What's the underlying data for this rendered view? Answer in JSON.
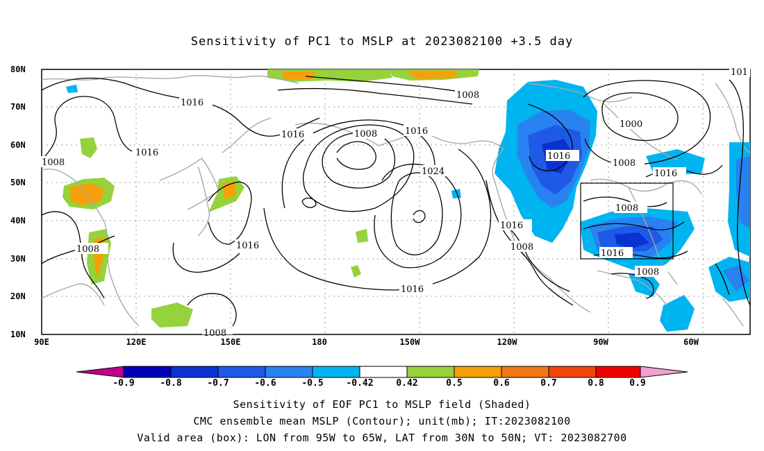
{
  "title": "Sensitivity of PC1 to MSLP at 2023082100 +3.5 day",
  "lat_labels": [
    "80N",
    "70N",
    "60N",
    "50N",
    "40N",
    "30N",
    "20N",
    "10N"
  ],
  "lon_labels": [
    "90E",
    "120E",
    "150E",
    "180",
    "150W",
    "120W",
    "90W",
    "60W"
  ],
  "contour_labels": [
    "1016",
    "1008",
    "1016",
    "1016",
    "1008",
    "1016",
    "1024",
    "1008",
    "1016",
    "1016",
    "1008",
    "1016",
    "1008",
    "1016",
    "1000",
    "1008",
    "1016",
    "1016",
    "1008",
    "1008",
    "101",
    "1008"
  ],
  "colorbar": {
    "labels": [
      "-0.9",
      "-0.8",
      "-0.7",
      "-0.6",
      "-0.5",
      "-0.42",
      "0.42",
      "0.5",
      "0.6",
      "0.7",
      "0.8",
      "0.9"
    ],
    "colors": [
      "#c0008c",
      "#0000b4",
      "#0a32d2",
      "#1e5ae6",
      "#2882f0",
      "#00b4f0",
      "#ffffff",
      "#96d23c",
      "#f5a00a",
      "#f07814",
      "#f0460a",
      "#f00000",
      "#f0a0d2"
    ]
  },
  "caption": {
    "line1": "Sensitivity of EOF PC1 to MSLP field (Shaded)",
    "line2": "CMC ensemble mean MSLP (Contour); unit(mb); IT:2023082100",
    "line3": "Valid area (box): LON from 95W to 65W, LAT from 30N to 50N; VT: 2023082700"
  }
}
